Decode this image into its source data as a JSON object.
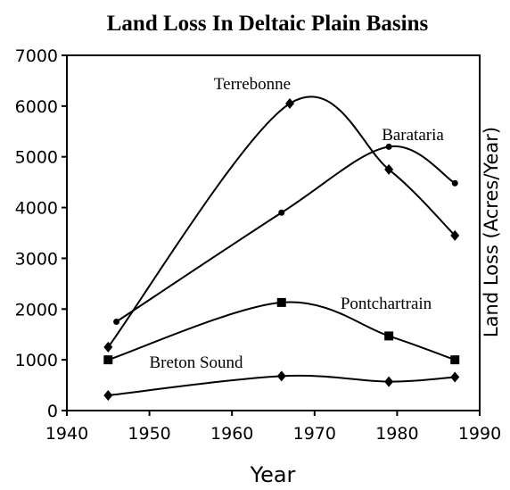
{
  "chart_data": {
    "type": "line",
    "title": "Land Loss In Deltaic Plain Basins",
    "x_label": "Year",
    "y_label": "Land Loss (Acres/Year)",
    "xlim": [
      1940,
      1990
    ],
    "xticks": [
      1940,
      1950,
      1960,
      1970,
      1980,
      1990
    ],
    "ylim": [
      0,
      7000
    ],
    "yticks": [
      0,
      1000,
      2000,
      3000,
      4000,
      5000,
      6000,
      7000
    ],
    "series": [
      {
        "name": "Terrebonne",
        "color": "#000000",
        "x": [
          1945,
          1967,
          1979,
          1987
        ],
        "values": [
          1250,
          6050,
          4750,
          3450
        ]
      },
      {
        "name": "Barataria",
        "color": "#000000",
        "x": [
          1946,
          1966,
          1979,
          1987
        ],
        "values": [
          1750,
          3900,
          5200,
          4480
        ]
      },
      {
        "name": "Pontchartrain",
        "color": "#000000",
        "x": [
          1945,
          1966,
          1979,
          1987
        ],
        "values": [
          1000,
          2130,
          1470,
          1000
        ]
      },
      {
        "name": "Breton Sound",
        "color": "#000000",
        "x": [
          1945,
          1966,
          1979,
          1987
        ],
        "values": [
          300,
          680,
          570,
          660
        ]
      }
    ]
  }
}
